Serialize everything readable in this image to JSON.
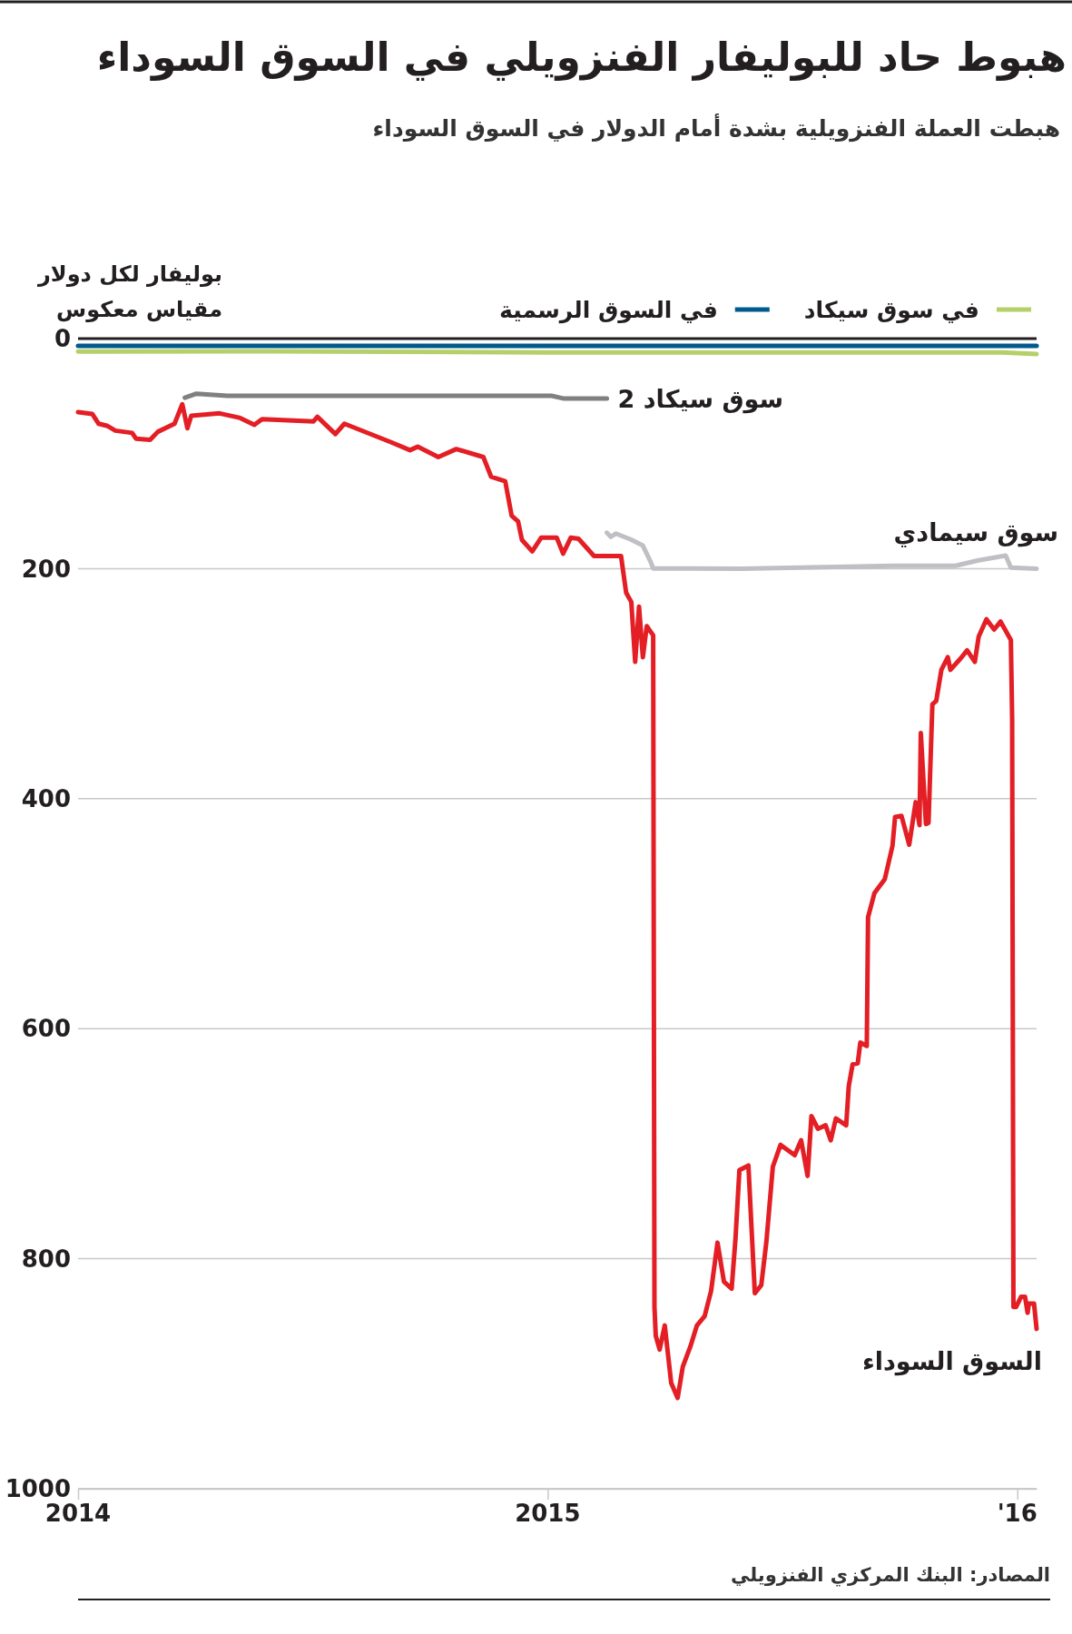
{
  "chart_data": {
    "type": "line",
    "title": "هبوط حاد للبوليفار الفنزويلي في السوق السوداء",
    "subtitle": "هبطت العملة الفنزويلية بشدة أمام الدولار في السوق السوداء",
    "ylabel": "بوليفار لكل دولار\nمقياس معكوس",
    "annotations": [
      "المصادر: البنك المركزي الفنزويلي"
    ],
    "xlim": [
      "2014-01-01",
      "2016-01-16"
    ],
    "xticks": [
      {
        "value": "2014-01-01",
        "label": "2014"
      },
      {
        "value": "2015-01-01",
        "label": "2015"
      },
      {
        "value": "2016-01-01",
        "label": "'16"
      }
    ],
    "ylim": [
      1000,
      0
    ],
    "yticks": [
      0,
      200,
      400,
      600,
      800,
      1000
    ],
    "grid": "y",
    "legend": "top",
    "line_style": "solid",
    "marker": "none",
    "series": [
      {
        "name": "في سوق سيكاد",
        "color": "#b5cf6b",
        "x": [
          "2014-01-01",
          "2014-06-01",
          "2015-01-01",
          "2015-12-20",
          "2016-01-16"
        ],
        "values": [
          11.3,
          11,
          12,
          12,
          13.5
        ]
      },
      {
        "name": "في السوق الرسمية",
        "color": "#005a8c",
        "x": [
          "2014-01-01",
          "2016-01-16"
        ],
        "values": [
          6.3,
          6.3
        ]
      },
      {
        "name": "سوق سيكاد 2",
        "color": "#808080",
        "x": [
          "2014-03-25",
          "2014-04-03",
          "2014-04-27",
          "2015-01-04",
          "2015-01-13",
          "2015-02-16"
        ],
        "values": [
          51.4,
          47.9,
          49.7,
          49.7,
          52,
          52
        ]
      },
      {
        "name": "سوق سيمادي",
        "color": "#bfbfc4",
        "x": [
          "2015-02-16",
          "2015-02-19",
          "2015-02-23",
          "2015-03-07",
          "2015-03-16",
          "2015-03-22",
          "2015-03-24",
          "2015-06-01",
          "2015-09-26",
          "2015-11-14",
          "2015-12-01",
          "2015-12-23",
          "2015-12-27",
          "2016-01-16"
        ],
        "values": [
          168.8,
          172.3,
          169.5,
          174.8,
          180,
          194,
          199.8,
          200,
          197.5,
          197.5,
          193,
          188.7,
          199,
          200
        ]
      },
      {
        "name": "السوق السوداء",
        "color": "#e31e24",
        "x": [
          "2014-01-01",
          "2014-01-12",
          "2014-01-17",
          "2014-01-24",
          "2014-01-30",
          "2014-02-12",
          "2014-02-15",
          "2014-02-26",
          "2014-03-04",
          "2014-03-17",
          "2014-03-23",
          "2014-03-27",
          "2014-03-30",
          "2014-04-21",
          "2014-05-07",
          "2014-05-18",
          "2014-05-24",
          "2014-07-03",
          "2014-07-06",
          "2014-07-20",
          "2014-07-27",
          "2014-09-01",
          "2014-09-16",
          "2014-09-22",
          "2014-10-08",
          "2014-10-22",
          "2014-11-12",
          "2014-11-18",
          "2014-11-29",
          "2014-12-04",
          "2014-12-09",
          "2014-12-12",
          "2014-12-20",
          "2014-12-27",
          "2015-01-08",
          "2015-01-13",
          "2015-01-19",
          "2015-01-25",
          "2015-02-06",
          "2015-02-27",
          "2015-03-03",
          "2015-03-07",
          "2015-03-10",
          "2015-03-13",
          "2015-03-16",
          "2015-03-19",
          "2015-03-24",
          "2015-03-25",
          "2015-03-26",
          "2015-03-29",
          "2015-04-02",
          "2015-04-07",
          "2015-04-12",
          "2015-04-16",
          "2015-04-22",
          "2015-04-27",
          "2015-05-03",
          "2015-05-08",
          "2015-05-13",
          "2015-05-18",
          "2015-05-24",
          "2015-05-27",
          "2015-05-30",
          "2015-06-06",
          "2015-06-11",
          "2015-06-16",
          "2015-06-20",
          "2015-06-25",
          "2015-07-01",
          "2015-07-12",
          "2015-07-17",
          "2015-07-22",
          "2015-07-25",
          "2015-07-30",
          "2015-08-05",
          "2015-08-09",
          "2015-08-13",
          "2015-08-21",
          "2015-08-23",
          "2015-08-26",
          "2015-08-30",
          "2015-09-01",
          "2015-09-06",
          "2015-09-07",
          "2015-09-12",
          "2015-09-20",
          "2015-09-26",
          "2015-09-28",
          "2015-10-03",
          "2015-10-09",
          "2015-10-14",
          "2015-10-17",
          "2015-10-18",
          "2015-10-22",
          "2015-10-24",
          "2015-10-27",
          "2015-10-30",
          "2015-11-03",
          "2015-11-08",
          "2015-11-10",
          "2015-11-18",
          "2015-11-23",
          "2015-11-29",
          "2015-12-02",
          "2015-12-08",
          "2015-12-14",
          "2015-12-19",
          "2015-12-27",
          "2015-12-28",
          "2015-12-29",
          "2015-12-31",
          "2016-01-04",
          "2016-01-07",
          "2016-01-09",
          "2016-01-10",
          "2016-01-14",
          "2016-01-16"
        ],
        "values": [
          64,
          65.5,
          74,
          76,
          80,
          82,
          87,
          88,
          81,
          74,
          57,
          78,
          67,
          65,
          69,
          75,
          70,
          72,
          68,
          83,
          74,
          90,
          97,
          94,
          103,
          96,
          103,
          120,
          124,
          154,
          159,
          175,
          185,
          173,
          173,
          187,
          173,
          174,
          189,
          189,
          221,
          229,
          281,
          233,
          277,
          250,
          258,
          842,
          867,
          879,
          858,
          908,
          921,
          894,
          876,
          858,
          850,
          828,
          786,
          820,
          826,
          782,
          723,
          719,
          830,
          823,
          785,
          720,
          701,
          710,
          697,
          728,
          676,
          687,
          684,
          697,
          678,
          684,
          650,
          631,
          630,
          612,
          615,
          503,
          482,
          470,
          441,
          416,
          415,
          440,
          403,
          423,
          343,
          422,
          421,
          318,
          315,
          288,
          277,
          288,
          278,
          271,
          281,
          259,
          244,
          253,
          246,
          262,
          330,
          842,
          842,
          833,
          833,
          847,
          839,
          839,
          861
        ]
      }
    ]
  }
}
